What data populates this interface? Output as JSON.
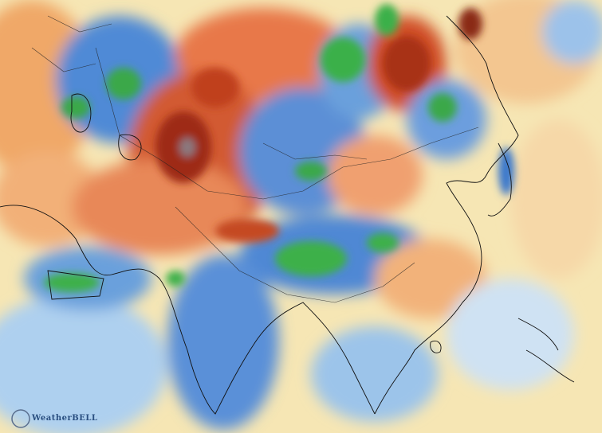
{
  "watermark": {
    "text": "WeatherBELL"
  }
}
